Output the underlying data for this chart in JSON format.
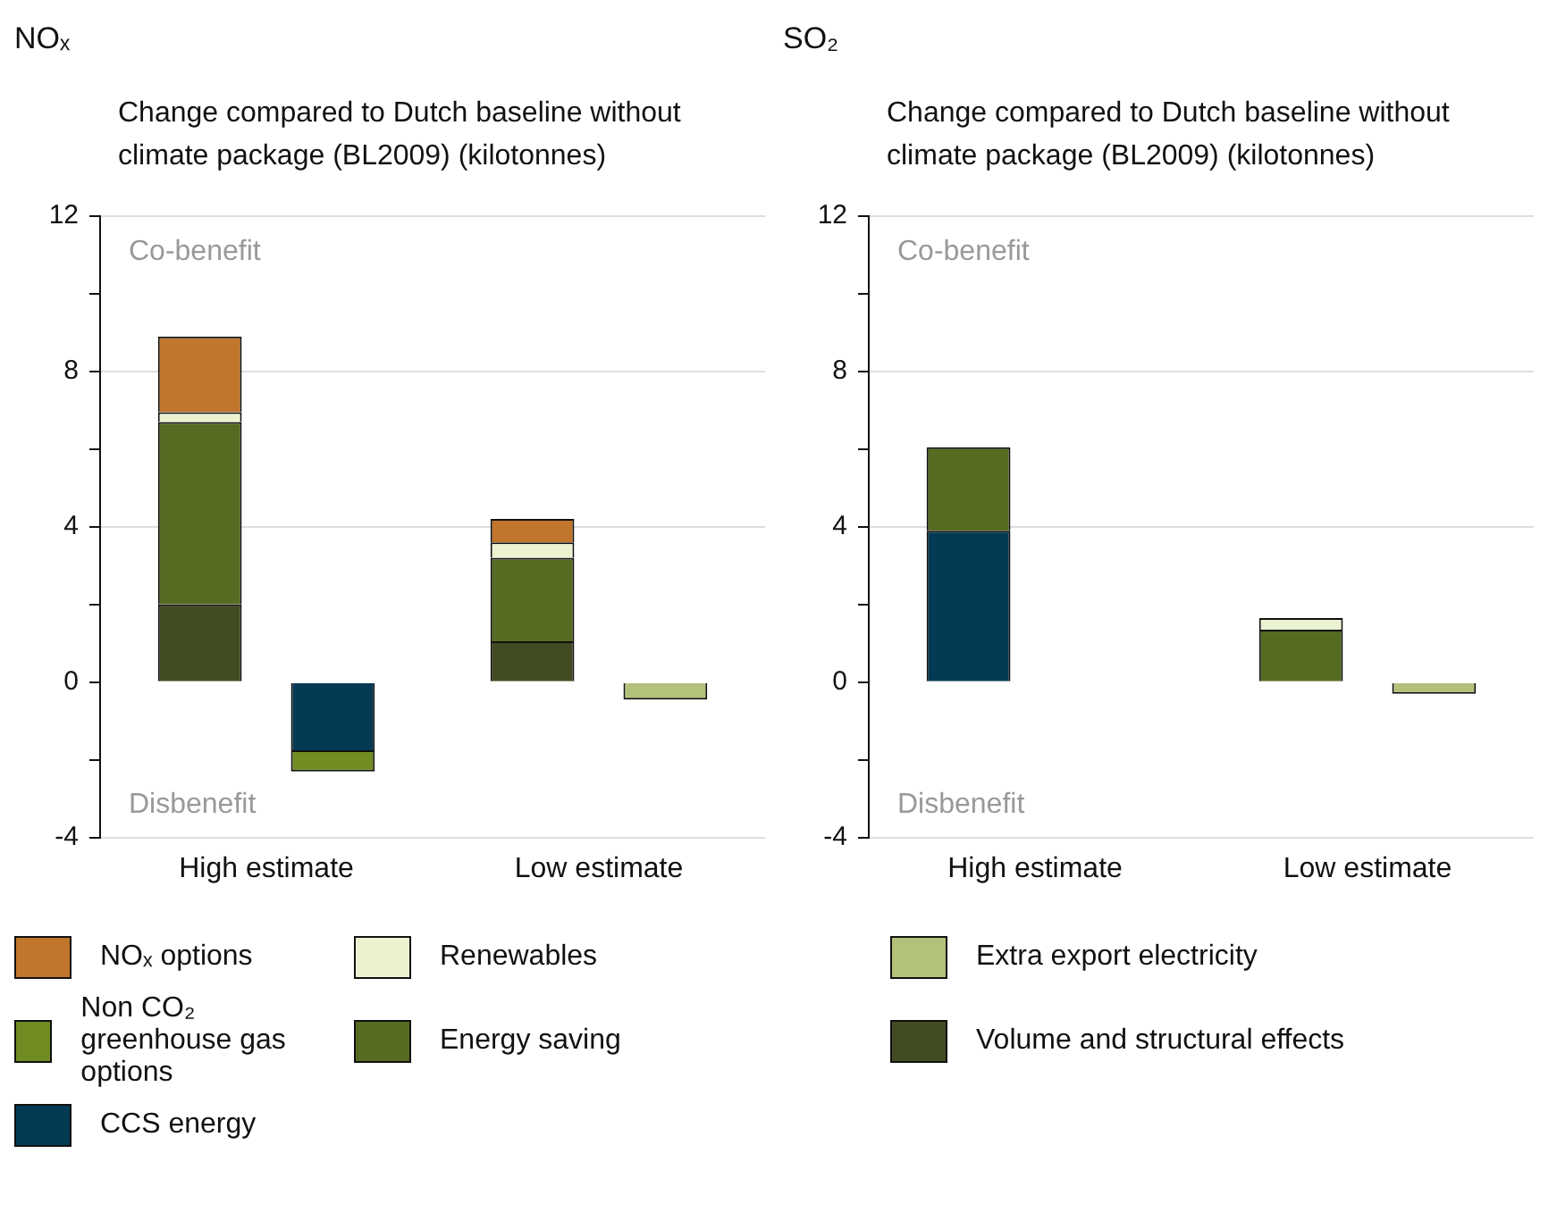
{
  "chart_data": [
    {
      "type": "bar",
      "title": "NOₓ",
      "subtitle": "Change compared to Dutch baseline without climate package (BL2009) (kilotonnes)",
      "annotations": [
        "Co-benefit",
        "Disbenefit"
      ],
      "categories": [
        "High estimate",
        "Low estimate"
      ],
      "stacked": true,
      "legend": "bottom",
      "grid": "y",
      "ylim": [
        -4,
        12
      ],
      "yticks": [
        -4,
        {
          "value": -2,
          "label": null
        },
        0,
        {
          "value": 2,
          "label": null
        },
        4,
        {
          "value": 6,
          "label": null
        },
        8,
        {
          "value": 10,
          "label": null
        },
        12
      ],
      "series": [
        {
          "name": "CCS energy",
          "color": "#053a55",
          "values": [
            -1.8,
            null
          ]
        },
        {
          "name": "Volume and structural effects",
          "color": "#424c22",
          "values": [
            2.0,
            1.05
          ]
        },
        {
          "name": "Energy saving",
          "color": "#566b22",
          "values": [
            4.7,
            2.15
          ]
        },
        {
          "name": "Non CO₂ greenhouse gas options",
          "color": "#708c22",
          "values": [
            -0.5,
            null
          ]
        },
        {
          "name": "Extra export electricity",
          "color": "#b3c27a",
          "values": [
            null,
            -0.45
          ]
        },
        {
          "name": "Renewables",
          "color": "#eaf2d0",
          "values": [
            0.25,
            0.4
          ]
        },
        {
          "name": "NOₓ options",
          "color": "#c0762c",
          "values": [
            1.95,
            0.6
          ]
        }
      ]
    },
    {
      "type": "bar",
      "title": "SO₂",
      "subtitle": "Change compared to Dutch baseline without climate package (BL2009) (kilotonnes)",
      "annotations": [
        "Co-benefit",
        "Disbenefit"
      ],
      "categories": [
        "High estimate",
        "Low estimate"
      ],
      "stacked": true,
      "legend": "bottom",
      "grid": "y",
      "ylim": [
        -4,
        12
      ],
      "yticks": [
        -4,
        {
          "value": -2,
          "label": null
        },
        0,
        {
          "value": 2,
          "label": null
        },
        4,
        {
          "value": 6,
          "label": null
        },
        8,
        {
          "value": 10,
          "label": null
        },
        12
      ],
      "series": [
        {
          "name": "CCS energy",
          "color": "#053a55",
          "values": [
            3.9,
            null
          ]
        },
        {
          "name": "Volume and structural effects",
          "color": "#424c22",
          "values": [
            null,
            null
          ]
        },
        {
          "name": "Energy saving",
          "color": "#566b22",
          "values": [
            2.15,
            1.35
          ]
        },
        {
          "name": "Non CO₂ greenhouse gas options",
          "color": "#708c22",
          "values": [
            null,
            null
          ]
        },
        {
          "name": "Extra export electricity",
          "color": "#b3c27a",
          "values": [
            null,
            -0.3
          ]
        },
        {
          "name": "Renewables",
          "color": "#eaf2d0",
          "values": [
            null,
            0.3
          ]
        },
        {
          "name": "NOₓ options",
          "color": "#c0762c",
          "values": [
            null,
            null
          ]
        }
      ]
    }
  ]
}
